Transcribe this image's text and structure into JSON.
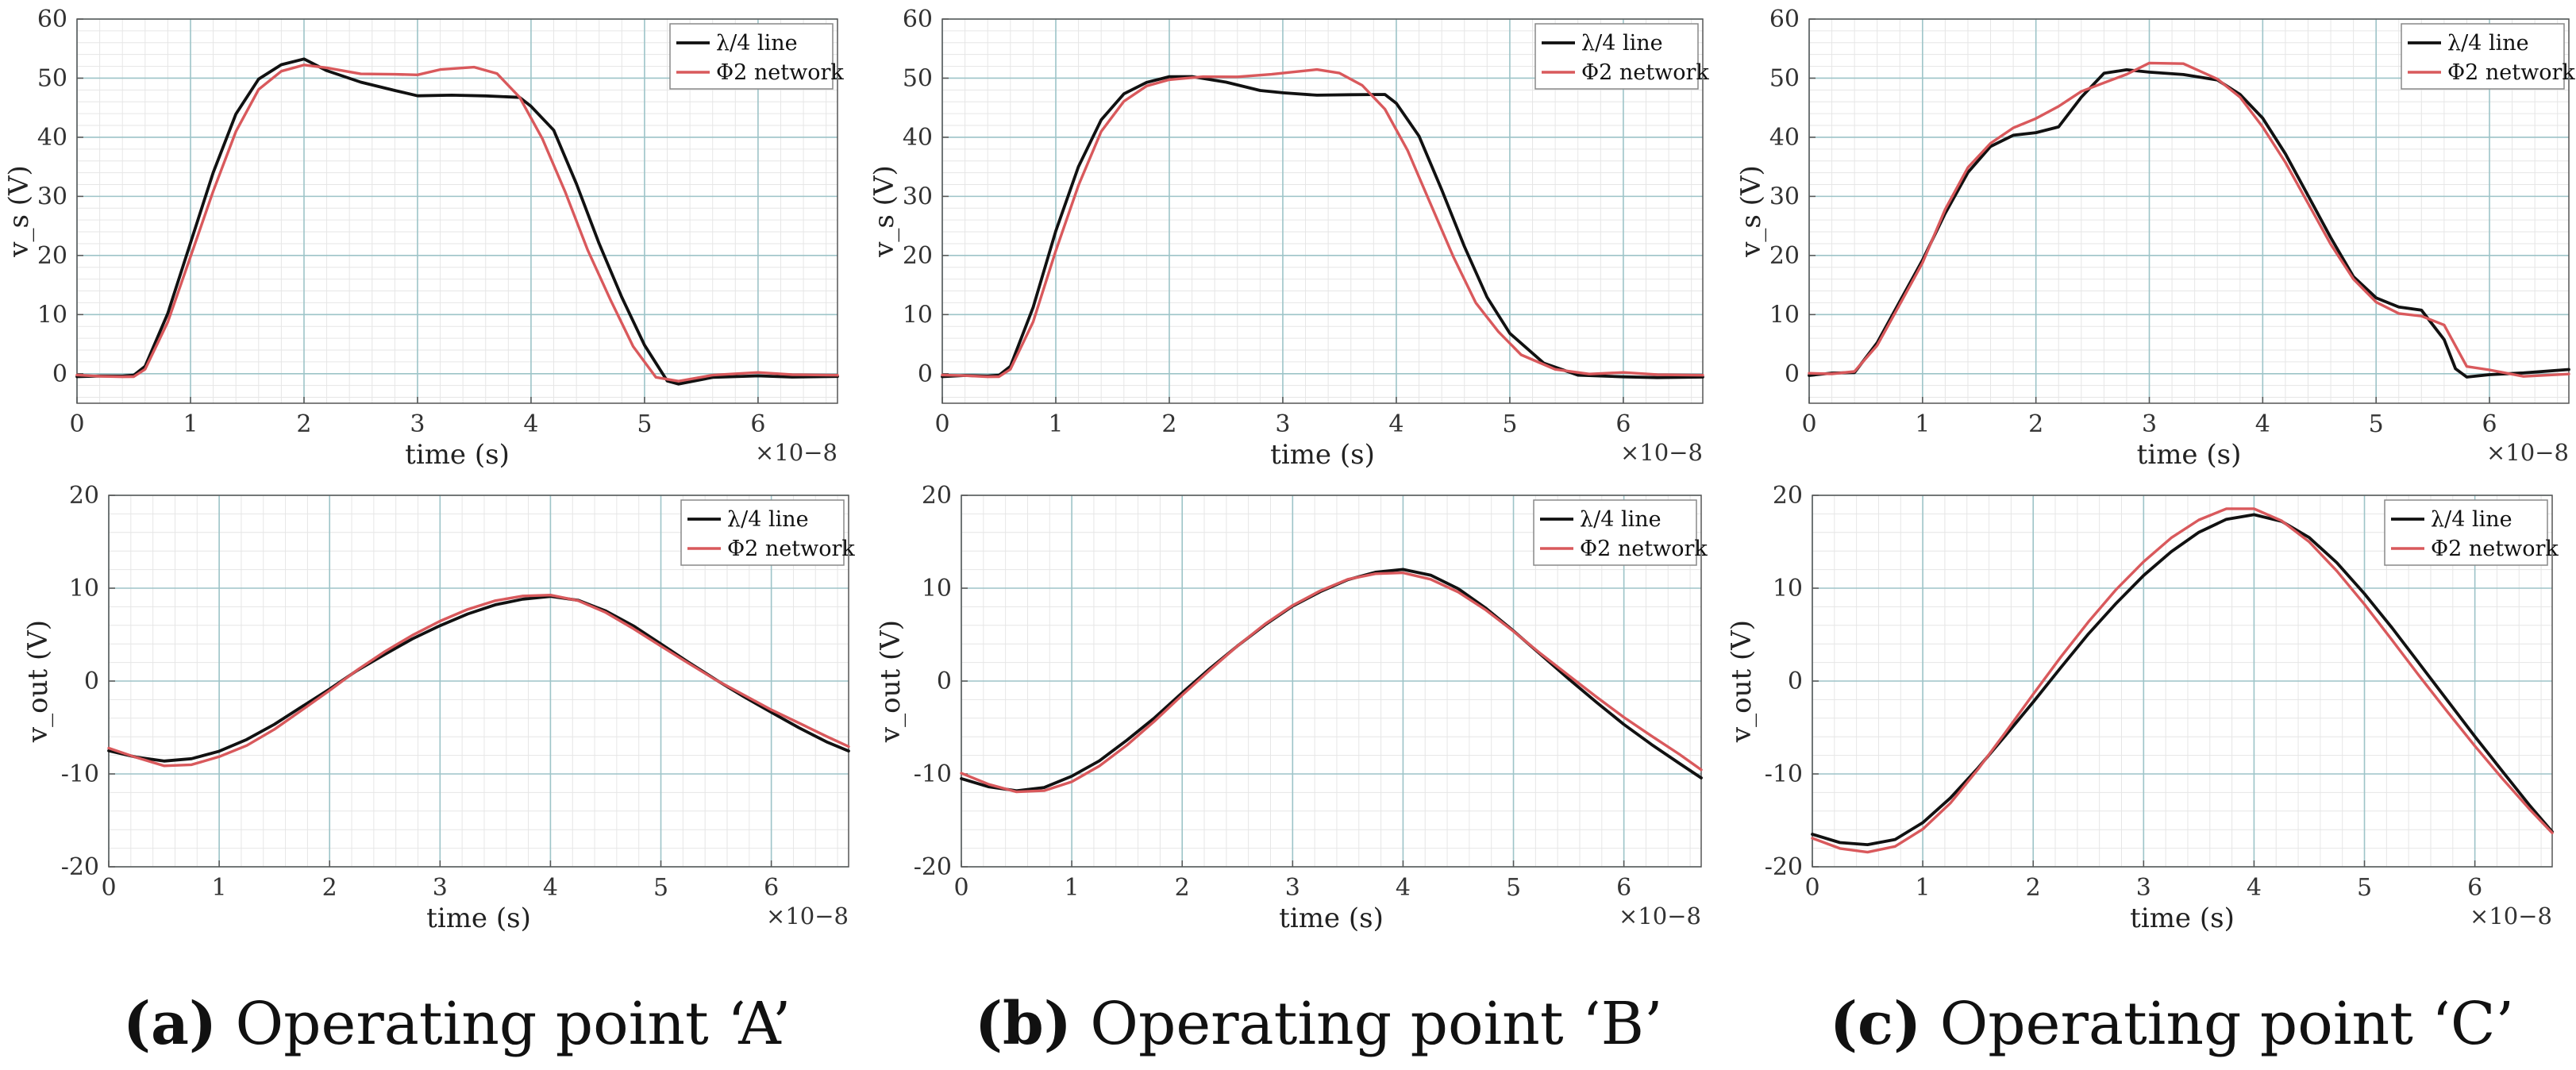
{
  "colors": {
    "line_series": "#111111",
    "network_series": "#d9595c",
    "major_grid": "#9dc4c8",
    "minor_grid": "#e6e6e6",
    "axis": "#555555"
  },
  "captions": [
    {
      "letter": "(a)",
      "text": " Operating point ‘A’"
    },
    {
      "letter": "(b)",
      "text": " Operating point ‘B’"
    },
    {
      "letter": "(c)",
      "text": " Operating point ‘C’"
    }
  ],
  "chart_data": [
    {
      "id": "a-top",
      "type": "line",
      "xlabel": "time (s)",
      "ylabel": "v_s (V)",
      "xlim": [
        0,
        6.7
      ],
      "ylim": [
        -5,
        60
      ],
      "xticks": [
        0,
        1,
        2,
        3,
        4,
        5,
        6
      ],
      "yticks": [
        0,
        10,
        20,
        30,
        40,
        50,
        60
      ],
      "x_multiplier": "×10−8",
      "legend": "top-right",
      "series": [
        {
          "name": "λ/4 line",
          "x": [
            0,
            0.2,
            0.4,
            0.5,
            0.6,
            0.8,
            1.0,
            1.2,
            1.4,
            1.6,
            1.8,
            2.0,
            2.2,
            2.5,
            2.8,
            3.0,
            3.3,
            3.6,
            3.9,
            4.0,
            4.2,
            4.4,
            4.6,
            4.8,
            5.0,
            5.2,
            5.3,
            5.6,
            6.0,
            6.3,
            6.7
          ],
          "values": [
            -0.5,
            -0.5,
            -0.6,
            -0.5,
            1,
            10,
            22,
            34,
            44,
            50,
            52.5,
            53.5,
            51.5,
            49.5,
            48,
            47,
            47,
            46.8,
            46.5,
            45,
            41,
            32,
            22,
            13,
            5,
            -1,
            -1.5,
            -0.4,
            -0.2,
            -0.5,
            -0.5
          ]
        },
        {
          "name": "Φ2 network",
          "x": [
            0,
            0.2,
            0.4,
            0.5,
            0.6,
            0.8,
            1.0,
            1.2,
            1.4,
            1.6,
            1.8,
            2.0,
            2.2,
            2.5,
            2.8,
            3.0,
            3.2,
            3.5,
            3.7,
            3.9,
            4.1,
            4.3,
            4.5,
            4.7,
            4.9,
            5.1,
            5.3,
            5.6,
            6.0,
            6.3,
            6.7
          ],
          "values": [
            -0.3,
            -0.4,
            -0.4,
            -0.3,
            1,
            9,
            20,
            31,
            41,
            48,
            51,
            52,
            51.5,
            50.5,
            50.5,
            50.5,
            51.5,
            52,
            51,
            47,
            40,
            31,
            21,
            12.5,
            4.5,
            -0.8,
            -1.5,
            -0.5,
            0,
            -0.3,
            -0.3
          ]
        }
      ]
    },
    {
      "id": "b-top",
      "type": "line",
      "xlabel": "time (s)",
      "ylabel": "v_s (V)",
      "xlim": [
        0,
        6.7
      ],
      "ylim": [
        -5,
        60
      ],
      "xticks": [
        0,
        1,
        2,
        3,
        4,
        5,
        6
      ],
      "yticks": [
        0,
        10,
        20,
        30,
        40,
        50,
        60
      ],
      "x_multiplier": "×10−8",
      "legend": "top-right",
      "series": [
        {
          "name": "λ/4 line",
          "x": [
            0,
            0.2,
            0.4,
            0.5,
            0.6,
            0.8,
            1.0,
            1.2,
            1.4,
            1.6,
            1.8,
            2.0,
            2.2,
            2.5,
            2.8,
            3.0,
            3.3,
            3.6,
            3.9,
            4.0,
            4.2,
            4.4,
            4.6,
            4.8,
            5.0,
            5.3,
            5.6,
            6.0,
            6.3,
            6.7
          ],
          "values": [
            -0.5,
            -0.4,
            -0.6,
            -0.5,
            1,
            11,
            24,
            35,
            43,
            47.5,
            49.5,
            50.5,
            50.5,
            49.5,
            48,
            47.5,
            47,
            47,
            47,
            45.5,
            40,
            31,
            21.5,
            13,
            7,
            2,
            0,
            -0.3,
            -0.5,
            -0.5
          ]
        },
        {
          "name": "Φ2 network",
          "x": [
            0,
            0.2,
            0.4,
            0.5,
            0.6,
            0.8,
            1.0,
            1.2,
            1.4,
            1.6,
            1.8,
            2.0,
            2.3,
            2.6,
            2.9,
            3.1,
            3.3,
            3.5,
            3.7,
            3.9,
            4.1,
            4.3,
            4.5,
            4.7,
            4.9,
            5.1,
            5.4,
            5.7,
            6.0,
            6.3,
            6.7
          ],
          "values": [
            -0.3,
            -0.3,
            -0.4,
            -0.3,
            1,
            9,
            21,
            32,
            41,
            46,
            48.5,
            49.5,
            50,
            50,
            50.5,
            51,
            51.5,
            51,
            49,
            45,
            38,
            29,
            20,
            12,
            7,
            3,
            0.5,
            -0.3,
            0,
            -0.3,
            -0.3
          ]
        }
      ]
    },
    {
      "id": "c-top",
      "type": "line",
      "xlabel": "time (s)",
      "ylabel": "v_s (V)",
      "xlim": [
        0,
        6.7
      ],
      "ylim": [
        -5,
        60
      ],
      "xticks": [
        0,
        1,
        2,
        3,
        4,
        5,
        6
      ],
      "yticks": [
        0,
        10,
        20,
        30,
        40,
        50,
        60
      ],
      "x_multiplier": "×10−8",
      "legend": "top-right",
      "series": [
        {
          "name": "λ/4 line",
          "x": [
            0,
            0.2,
            0.4,
            0.6,
            0.8,
            1.0,
            1.2,
            1.4,
            1.6,
            1.8,
            2.0,
            2.2,
            2.4,
            2.6,
            2.8,
            3.0,
            3.3,
            3.6,
            3.8,
            4.0,
            4.2,
            4.4,
            4.6,
            4.8,
            5.0,
            5.2,
            5.4,
            5.6,
            5.7,
            5.8,
            6.0,
            6.3,
            6.7
          ],
          "values": [
            -0.3,
            0,
            0,
            5,
            12,
            19,
            27,
            34,
            38.5,
            40.5,
            41,
            42,
            47,
            51,
            51.5,
            51,
            50.5,
            49.5,
            47,
            43,
            37,
            30,
            23,
            16.5,
            13,
            11.5,
            11,
            6,
            1,
            -0.5,
            -0.2,
            0,
            0.5
          ]
        },
        {
          "name": "Φ2 network",
          "x": [
            0,
            0.2,
            0.4,
            0.6,
            0.8,
            1.0,
            1.2,
            1.4,
            1.6,
            1.8,
            2.0,
            2.2,
            2.4,
            2.6,
            2.8,
            3.0,
            3.3,
            3.6,
            3.8,
            4.0,
            4.2,
            4.4,
            4.6,
            4.8,
            5.0,
            5.2,
            5.4,
            5.6,
            5.8,
            6.0,
            6.3,
            6.7
          ],
          "values": [
            0,
            0,
            0.5,
            5,
            12,
            19,
            28,
            35,
            39,
            41.5,
            43,
            45,
            47.5,
            49,
            50.5,
            52.5,
            52.5,
            50,
            47,
            42,
            36,
            29,
            22,
            16,
            12,
            10,
            9.5,
            8,
            1,
            0.5,
            -0.5,
            0
          ]
        }
      ]
    },
    {
      "id": "a-bottom",
      "type": "line",
      "xlabel": "time (s)",
      "ylabel": "v_out (V)",
      "xlim": [
        0,
        6.7
      ],
      "ylim": [
        -20,
        20
      ],
      "xticks": [
        0,
        1,
        2,
        3,
        4,
        5,
        6
      ],
      "yticks": [
        -20,
        -10,
        0,
        10,
        20
      ],
      "x_multiplier": "×10−8",
      "legend": "top-right",
      "series": [
        {
          "name": "λ/4 line",
          "x": [
            0,
            0.25,
            0.5,
            0.75,
            1.0,
            1.25,
            1.5,
            1.75,
            2.0,
            2.25,
            2.5,
            2.75,
            3.0,
            3.25,
            3.5,
            3.75,
            4.0,
            4.25,
            4.5,
            4.75,
            5.0,
            5.25,
            5.5,
            5.75,
            6.0,
            6.25,
            6.5,
            6.7
          ],
          "values": [
            -7.5,
            -8.3,
            -8.8,
            -8.6,
            -7.8,
            -6.5,
            -4.8,
            -2.8,
            -0.8,
            1.3,
            3.1,
            4.8,
            6.2,
            7.4,
            8.3,
            8.8,
            9.0,
            8.5,
            7.3,
            5.7,
            3.8,
            1.9,
            0.1,
            -1.6,
            -3.2,
            -4.8,
            -6.3,
            -7.3
          ]
        },
        {
          "name": "Φ2 network",
          "x": [
            0,
            0.25,
            0.5,
            0.75,
            1.0,
            1.25,
            1.5,
            1.75,
            2.0,
            2.25,
            2.5,
            2.75,
            3.0,
            3.25,
            3.5,
            3.75,
            4.0,
            4.25,
            4.5,
            4.75,
            5.0,
            5.25,
            5.5,
            5.75,
            6.0,
            6.25,
            6.5,
            6.7
          ],
          "values": [
            -7.3,
            -8.2,
            -9.0,
            -8.8,
            -7.9,
            -6.7,
            -5.0,
            -3.0,
            -1.0,
            1.1,
            3.0,
            4.7,
            6.2,
            7.5,
            8.5,
            9.1,
            9.3,
            8.8,
            7.6,
            5.9,
            4.0,
            2.1,
            0.2,
            -1.5,
            -3.2,
            -4.7,
            -6.2,
            -7.3
          ]
        }
      ]
    },
    {
      "id": "b-bottom",
      "type": "line",
      "xlabel": "time (s)",
      "ylabel": "v_out (V)",
      "xlim": [
        0,
        6.7
      ],
      "ylim": [
        -20,
        20
      ],
      "xticks": [
        0,
        1,
        2,
        3,
        4,
        5,
        6
      ],
      "yticks": [
        -20,
        -10,
        0,
        10,
        20
      ],
      "x_multiplier": "×10−8",
      "legend": "top-right",
      "series": [
        {
          "name": "λ/4 line",
          "x": [
            0,
            0.25,
            0.5,
            0.75,
            1.0,
            1.25,
            1.5,
            1.75,
            2.0,
            2.25,
            2.5,
            2.75,
            3.0,
            3.25,
            3.5,
            3.75,
            4.0,
            4.25,
            4.5,
            4.75,
            5.0,
            5.25,
            5.5,
            5.75,
            6.0,
            6.25,
            6.5,
            6.7
          ],
          "values": [
            -10.5,
            -11.5,
            -12,
            -11.7,
            -10.5,
            -8.8,
            -6.5,
            -4.0,
            -1.2,
            1.5,
            4.0,
            6.3,
            8.3,
            9.8,
            11.0,
            11.7,
            11.9,
            11.2,
            9.7,
            7.6,
            5.2,
            2.7,
            0.2,
            -2.2,
            -4.5,
            -6.6,
            -8.6,
            -10.2
          ]
        },
        {
          "name": "Φ2 network",
          "x": [
            0,
            0.25,
            0.5,
            0.75,
            1.0,
            1.25,
            1.5,
            1.75,
            2.0,
            2.25,
            2.5,
            2.75,
            3.0,
            3.25,
            3.5,
            3.75,
            4.0,
            4.25,
            4.5,
            4.75,
            5.0,
            5.25,
            5.5,
            5.75,
            6.0,
            6.25,
            6.5,
            6.7
          ],
          "values": [
            -10,
            -11.1,
            -11.8,
            -11.6,
            -10.6,
            -8.9,
            -6.7,
            -4.2,
            -1.5,
            1.1,
            3.6,
            5.9,
            7.9,
            9.5,
            10.8,
            11.5,
            11.7,
            11.1,
            9.8,
            7.9,
            5.6,
            3.1,
            0.7,
            -1.7,
            -4.0,
            -6.1,
            -8.1,
            -9.8
          ]
        }
      ]
    },
    {
      "id": "c-bottom",
      "type": "line",
      "xlabel": "time (s)",
      "ylabel": "v_out (V)",
      "xlim": [
        0,
        6.7
      ],
      "ylim": [
        -20,
        20
      ],
      "xticks": [
        0,
        1,
        2,
        3,
        4,
        5,
        6
      ],
      "yticks": [
        -20,
        -10,
        0,
        10,
        20
      ],
      "x_multiplier": "×10−8",
      "legend": "top-right",
      "series": [
        {
          "name": "λ/4 line",
          "x": [
            0,
            0.25,
            0.5,
            0.75,
            1.0,
            1.25,
            1.5,
            1.75,
            2.0,
            2.25,
            2.5,
            2.75,
            3.0,
            3.25,
            3.5,
            3.75,
            4.0,
            4.25,
            4.5,
            4.75,
            5.0,
            5.25,
            5.5,
            5.75,
            6.0,
            6.25,
            6.5,
            6.7
          ],
          "values": [
            -16.5,
            -17.5,
            -17.8,
            -17.3,
            -15.5,
            -12.8,
            -9.5,
            -5.9,
            -2.2,
            1.6,
            5.3,
            8.6,
            11.6,
            14.1,
            16.1,
            17.4,
            17.8,
            17.0,
            15.2,
            12.5,
            9.2,
            5.6,
            1.8,
            -2.0,
            -5.8,
            -9.5,
            -13.2,
            -16.0
          ]
        },
        {
          "name": "Φ2 network",
          "x": [
            0,
            0.25,
            0.5,
            0.75,
            1.0,
            1.25,
            1.5,
            1.75,
            2.0,
            2.25,
            2.5,
            2.75,
            3.0,
            3.25,
            3.5,
            3.75,
            4.0,
            4.25,
            4.5,
            4.75,
            5.0,
            5.25,
            5.5,
            5.75,
            6.0,
            6.25,
            6.5,
            6.7
          ],
          "values": [
            -17.0,
            -18.0,
            -18.3,
            -17.6,
            -15.7,
            -12.9,
            -9.3,
            -5.4,
            -1.4,
            2.5,
            6.2,
            9.6,
            12.6,
            15.2,
            17.2,
            18.5,
            18.6,
            17.4,
            15.2,
            12.1,
            8.5,
            4.6,
            0.6,
            -3.3,
            -7.1,
            -10.7,
            -14.1,
            -16.6
          ]
        }
      ]
    }
  ]
}
